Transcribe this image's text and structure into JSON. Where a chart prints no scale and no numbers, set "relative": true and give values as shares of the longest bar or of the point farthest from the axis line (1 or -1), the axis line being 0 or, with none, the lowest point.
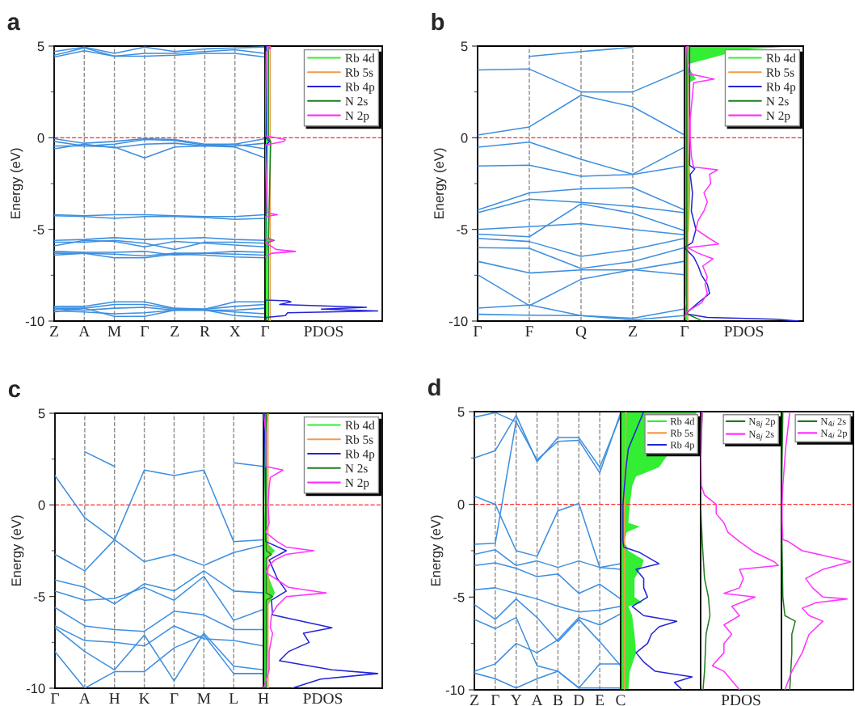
{
  "chart_data": [
    {
      "type": "line",
      "title": "a",
      "ylabel": "Energy (eV)",
      "categories": [
        "Z",
        "A",
        "M",
        "Γ",
        "Z",
        "R",
        "X",
        "Γ"
      ],
      "ylim": [
        -10,
        5
      ],
      "grid": "x",
      "yticks": [
        -10,
        {
          "value": -7.5,
          "label": null
        },
        -5,
        {
          "value": -2.5,
          "label": null
        },
        0,
        {
          "value": 2.5,
          "label": null
        },
        5
      ],
      "ref_lines": [
        {
          "axis": "y",
          "value": 0,
          "color": "#ff2a2a",
          "line_style": "dashed"
        }
      ],
      "series": [
        {
          "color": "#3d8fe0",
          "values": [
            4.7,
            4.95,
            4.6,
            4.95,
            4.7,
            4.85,
            4.9,
            4.95
          ]
        },
        {
          "color": "#3d8fe0",
          "values": [
            4.5,
            4.9,
            4.45,
            4.6,
            4.6,
            4.7,
            4.8,
            4.6
          ]
        },
        {
          "color": "#3d8fe0",
          "values": [
            4.4,
            4.75,
            4.45,
            4.45,
            4.5,
            4.6,
            4.6,
            4.4
          ]
        },
        {
          "color": "#3d8fe0",
          "values": [
            -0.05,
            -0.3,
            -0.2,
            -0.05,
            -0.1,
            -0.35,
            -0.35,
            -0.05
          ]
        },
        {
          "color": "#3d8fe0",
          "values": [
            -0.2,
            -0.45,
            -0.35,
            -0.1,
            -0.15,
            -0.4,
            -0.45,
            -0.3
          ]
        },
        {
          "color": "#3d8fe0",
          "values": [
            -0.45,
            -0.45,
            -0.5,
            -1.1,
            -0.5,
            -0.45,
            -0.5,
            -1.1
          ]
        },
        {
          "color": "#3d8fe0",
          "values": [
            -0.6,
            -0.35,
            -0.55,
            -0.35,
            -0.3,
            -0.45,
            -0.35,
            -0.6
          ]
        },
        {
          "color": "#3d8fe0",
          "values": [
            -4.2,
            -4.25,
            -4.2,
            -4.2,
            -4.25,
            -4.3,
            -4.3,
            -4.2
          ]
        },
        {
          "color": "#3d8fe0",
          "values": [
            -4.25,
            -4.3,
            -4.4,
            -4.3,
            -4.3,
            -4.35,
            -4.45,
            -4.4
          ]
        },
        {
          "color": "#3d8fe0",
          "values": [
            -5.6,
            -5.55,
            -5.45,
            -5.55,
            -5.5,
            -5.45,
            -5.55,
            -5.6
          ]
        },
        {
          "color": "#3d8fe0",
          "values": [
            -5.7,
            -5.7,
            -5.6,
            -5.75,
            -6.1,
            -5.7,
            -5.7,
            -5.75
          ]
        },
        {
          "color": "#3d8fe0",
          "values": [
            -5.9,
            -5.6,
            -5.65,
            -5.95,
            -5.65,
            -5.75,
            -5.85,
            -5.95
          ]
        },
        {
          "color": "#3d8fe0",
          "values": [
            -6.2,
            -6.25,
            -6.25,
            -6.2,
            -6.4,
            -6.3,
            -6.2,
            -6.25
          ]
        },
        {
          "color": "#3d8fe0",
          "values": [
            -6.3,
            -6.3,
            -6.35,
            -6.45,
            -6.3,
            -6.3,
            -6.35,
            -6.4
          ]
        },
        {
          "color": "#3d8fe0",
          "values": [
            -6.4,
            -6.3,
            -6.55,
            -6.55,
            -6.35,
            -6.4,
            -6.5,
            -6.55
          ]
        },
        {
          "color": "#3d8fe0",
          "values": [
            -9.2,
            -9.2,
            -8.95,
            -8.95,
            -9.3,
            -9.35,
            -8.95,
            -8.95
          ]
        },
        {
          "color": "#3d8fe0",
          "values": [
            -9.3,
            -9.3,
            -9.1,
            -9.1,
            -9.35,
            -9.35,
            -9.2,
            -9.1
          ]
        },
        {
          "color": "#3d8fe0",
          "values": [
            -9.35,
            -9.4,
            -9.3,
            -9.25,
            -9.4,
            -9.4,
            -9.4,
            -9.3
          ]
        },
        {
          "color": "#3d8fe0",
          "values": [
            -9.45,
            -9.5,
            -9.6,
            -9.55,
            -9.4,
            -9.4,
            -9.5,
            -9.6
          ]
        },
        {
          "color": "#3d8fe0",
          "values": [
            -9.5,
            -9.3,
            -9.75,
            -9.75,
            -9.4,
            -9.4,
            -9.7,
            -9.8
          ]
        }
      ]
    },
    {
      "type": "line",
      "orientation": "horizontal",
      "relative": true,
      "xlabel": "PDOS",
      "ylim": [
        -10,
        5
      ],
      "tick_labels": false,
      "legend": "top right",
      "ref_lines": [
        {
          "axis": "y",
          "value": 0,
          "color": "#ff2a2a",
          "line_style": "dashed"
        }
      ],
      "series": [
        {
          "name": "Rb 4d",
          "type": "area",
          "color": "#33ee33",
          "x": [
            5,
            4.8,
            0,
            -0.2,
            -5.5,
            -5.6,
            -6.2,
            -10
          ],
          "values": [
            0.02,
            0.02,
            0.02,
            0.03,
            0.02,
            0.04,
            0.02,
            0.02
          ]
        },
        {
          "name": "Rb 5s",
          "color": "#f39a4a",
          "x": [
            5,
            -10
          ],
          "values": [
            0.045,
            0.045
          ]
        },
        {
          "name": "Rb 4p",
          "color": "#2424d8",
          "x": [
            5,
            0,
            -0.2,
            -0.4,
            -8.85,
            -8.9,
            -8.95,
            -9.1,
            -9.25,
            -9.35,
            -9.45,
            -9.55,
            -9.7,
            -9.8,
            -10
          ],
          "values": [
            0.01,
            0.01,
            0.04,
            0.01,
            0.0,
            0.2,
            0.23,
            0.13,
            0.9,
            0.5,
            1.0,
            0.2,
            0.18,
            0.01,
            0.0
          ]
        },
        {
          "name": "N 2s",
          "color": "#1e7d1e",
          "x": [
            5,
            0,
            -0.2,
            -5.5,
            -5.6,
            -5.7,
            -10
          ],
          "values": [
            0.03,
            0.03,
            0.05,
            0.03,
            0.08,
            0.03,
            0.03
          ]
        },
        {
          "name": "N 2p",
          "color": "#ff33ff",
          "x": [
            5,
            4.9,
            4.7,
            0.1,
            -0.1,
            -0.2,
            -0.3,
            -0.4,
            -4.1,
            -4.2,
            -4.3,
            -5.5,
            -5.6,
            -5.7,
            -6.1,
            -6.2,
            -6.3,
            -6.5
          ],
          "values": [
            0.02,
            0.05,
            0.01,
            0.0,
            0.18,
            0.17,
            0.08,
            0.0,
            0.02,
            0.11,
            0.0,
            0.0,
            0.07,
            0.0,
            0.1,
            0.27,
            0.06,
            0.0
          ]
        }
      ]
    },
    {
      "type": "line",
      "title": "b",
      "ylabel": "Energy (eV)",
      "categories": [
        "Γ",
        "F",
        "Q",
        "Z",
        "Γ"
      ],
      "ylim": [
        -10,
        5
      ],
      "grid": "x",
      "yticks": [
        -10,
        {
          "value": -7.5,
          "label": null
        },
        -5,
        {
          "value": -2.5,
          "label": null
        },
        0,
        {
          "value": 2.5,
          "label": null
        },
        5
      ],
      "ref_lines": [
        {
          "axis": "y",
          "value": 0,
          "color": "#ff2a2a",
          "line_style": "dashed"
        }
      ],
      "series": [
        {
          "color": "#3d8fe0",
          "values": [
            null,
            4.44,
            4.7,
            4.93,
            null
          ]
        },
        {
          "color": "#3d8fe0",
          "values": [
            3.7,
            3.75,
            2.5,
            2.5,
            3.7
          ]
        },
        {
          "color": "#3d8fe0",
          "values": [
            0.15,
            0.59,
            2.32,
            1.69,
            0.15
          ]
        },
        {
          "color": "#3d8fe0",
          "values": [
            -0.51,
            -0.24,
            -1.18,
            -1.99,
            -0.51
          ]
        },
        {
          "color": "#3d8fe0",
          "values": [
            -1.54,
            -1.5,
            -2.1,
            -2.0,
            -1.54
          ]
        },
        {
          "color": "#3d8fe0",
          "values": [
            -3.94,
            -3.01,
            -2.79,
            -2.72,
            -3.94
          ]
        },
        {
          "color": "#3d8fe0",
          "values": [
            -4.09,
            -3.35,
            -3.53,
            -3.75,
            -4.09
          ]
        },
        {
          "color": "#3d8fe0",
          "values": [
            -5.0,
            -4.85,
            -4.68,
            -5.0,
            -5.29
          ]
        },
        {
          "color": "#3d8fe0",
          "values": [
            -5.26,
            -5.4,
            -3.6,
            -4.12,
            -5.07
          ]
        },
        {
          "color": "#3d8fe0",
          "values": [
            -5.49,
            -5.66,
            -6.47,
            -6.1,
            -5.49
          ]
        },
        {
          "color": "#3d8fe0",
          "values": [
            -6.0,
            -6.03,
            -7.13,
            -6.76,
            -6.0
          ]
        },
        {
          "color": "#3d8fe0",
          "values": [
            -6.74,
            -7.38,
            -7.21,
            -7.21,
            -6.74
          ]
        },
        {
          "color": "#3d8fe0",
          "values": [
            -7.47,
            -9.16,
            -7.72,
            -7.2,
            -7.47
          ]
        },
        {
          "color": "#3d8fe0",
          "values": [
            -9.29,
            -9.12,
            -9.7,
            -9.85,
            -9.34
          ]
        },
        {
          "color": "#3d8fe0",
          "values": [
            -9.63,
            -9.68,
            -9.7,
            -9.93,
            -9.7
          ]
        }
      ]
    },
    {
      "type": "line",
      "orientation": "horizontal",
      "relative": true,
      "xlabel": "PDOS",
      "ylim": [
        -10,
        5
      ],
      "tick_labels": false,
      "legend": "top right",
      "ref_lines": [
        {
          "axis": "y",
          "value": 0,
          "color": "#ff2a2a",
          "line_style": "dashed"
        }
      ],
      "series": [
        {
          "name": "Rb 4d",
          "type": "area",
          "color": "#33ee33",
          "x": [
            5,
            4.8,
            4.5,
            4.0,
            3.2,
            3.0,
            0,
            -2,
            -3,
            -5,
            -6,
            -8,
            -9,
            -10
          ],
          "values": [
            0.97,
            0.5,
            null,
            0.02,
            0.1,
            0.04,
            0.03,
            0.05,
            0.05,
            0.04,
            0.02,
            0.02,
            0.01,
            0.03
          ]
        },
        {
          "name": "Rb 5s",
          "color": "#f39a4a",
          "x": [
            5,
            4.5,
            4.0,
            0,
            -10
          ],
          "values": [
            0.03,
            0.05,
            0.03,
            0.03,
            0.03
          ]
        },
        {
          "name": "Rb 4p",
          "color": "#2424d8",
          "x": [
            5,
            0,
            -1.5,
            -1.7,
            -2,
            -3,
            -4,
            -5,
            -5.7,
            -6,
            -6.5,
            -7,
            -7.5,
            -8,
            -8.5,
            -9,
            -9.6,
            -9.8,
            -9.9,
            -10
          ],
          "values": [
            0.045,
            0.045,
            0.045,
            0.09,
            0.05,
            0.07,
            0.06,
            0.1,
            0.07,
            0.0,
            0.08,
            0.12,
            0.15,
            0.2,
            0.22,
            0.12,
            0.01,
            0.2,
            0.8,
            1.0
          ]
        },
        {
          "name": "N 2s",
          "color": "#1e7d1e",
          "x": [
            4.9,
            -9.6,
            -9.95
          ],
          "values": [
            0.02,
            0.02,
            0.14
          ]
        },
        {
          "name": "N 2p",
          "color": "#ff33ff",
          "x": [
            5,
            3.5,
            3.2,
            3.0,
            1,
            0,
            -1,
            -1.6,
            -1.75,
            -2,
            -2.5,
            -3,
            -3.5,
            -4,
            -4.5,
            -5,
            -5.5,
            -5.8,
            -6,
            -6.3,
            -6.6,
            -7,
            -7.6,
            -8,
            -8.5,
            -9,
            -9.5,
            -9.8
          ],
          "values": [
            0.02,
            0.03,
            0.26,
            0.08,
            0.05,
            0.05,
            0.06,
            0.08,
            0.29,
            0.22,
            0.23,
            0.17,
            0.2,
            0.17,
            0.12,
            0.1,
            0.22,
            0.3,
            0.03,
            0.12,
            0.25,
            0.16,
            0.2,
            0.18,
            0.2,
            0.15,
            0.02,
            0.0
          ]
        }
      ]
    },
    {
      "type": "line",
      "title": "c",
      "ylabel": "Energy (eV)",
      "categories": [
        "Γ",
        "A",
        "H",
        "K",
        "Γ",
        "M",
        "L",
        "H"
      ],
      "ylim": [
        -10,
        5
      ],
      "grid": "x",
      "yticks": [
        -10,
        {
          "value": -7.5,
          "label": null
        },
        -5,
        {
          "value": -2.5,
          "label": null
        },
        0,
        {
          "value": 2.5,
          "label": null
        },
        5
      ],
      "ref_lines": [
        {
          "axis": "y",
          "value": 0,
          "color": "#ff2a2a",
          "line_style": "dashed"
        }
      ],
      "series": [
        {
          "color": "#3d8fe0",
          "values": [
            null,
            2.9,
            2.1,
            null,
            null,
            null,
            null,
            null
          ]
        },
        {
          "color": "#3d8fe0",
          "values": [
            null,
            null,
            null,
            null,
            null,
            null,
            2.3,
            2.1
          ]
        },
        {
          "color": "#3d8fe0",
          "values": [
            1.6,
            -0.7,
            -1.9,
            1.9,
            1.6,
            1.9,
            -2.0,
            -1.9
          ]
        },
        {
          "color": "#3d8fe0",
          "values": [
            -2.7,
            -3.6,
            -1.9,
            -3.1,
            -2.7,
            -3.3,
            -2.6,
            -2.2
          ]
        },
        {
          "color": "#3d8fe0",
          "values": [
            -4.1,
            -4.5,
            -5.4,
            -4.3,
            -4.7,
            -3.6,
            -4.7,
            -4.8
          ]
        },
        {
          "color": "#3d8fe0",
          "values": [
            -4.7,
            -5.2,
            -5.1,
            -4.5,
            -5.2,
            -3.9,
            -6.3,
            -5.7
          ]
        },
        {
          "color": "#3d8fe0",
          "values": [
            -5.6,
            -6.6,
            -6.8,
            -6.9,
            -5.8,
            -6.0,
            -6.8,
            -6.8
          ]
        },
        {
          "color": "#3d8fe0",
          "values": [
            -6.6,
            -7.4,
            -7.5,
            -7.7,
            -6.6,
            -7.3,
            -7.4,
            -7.7
          ]
        },
        {
          "color": "#3d8fe0",
          "values": [
            -6.7,
            -8.0,
            -9.0,
            -7.1,
            -9.6,
            -7.0,
            -8.8,
            -9.0
          ]
        },
        {
          "color": "#3d8fe0",
          "values": [
            -8.0,
            -10.0,
            -9.1,
            -9.1,
            -7.8,
            -7.1,
            -9.2,
            -9.2
          ]
        }
      ]
    },
    {
      "type": "line",
      "orientation": "horizontal",
      "relative": true,
      "xlabel": "PDOS",
      "ylim": [
        -10,
        5
      ],
      "tick_labels": false,
      "legend": "top right",
      "ref_lines": [
        {
          "axis": "y",
          "value": 0,
          "color": "#ff2a2a",
          "line_style": "dashed"
        }
      ],
      "series": [
        {
          "name": "Rb 4d",
          "type": "area",
          "color": "#33ee33",
          "x": [
            5,
            4.5,
            3,
            0,
            -2,
            -2.5,
            -3,
            -4,
            -4.8,
            -5.5,
            -7,
            -9,
            -10
          ],
          "values": [
            0.05,
            0.03,
            0.02,
            0.01,
            0.02,
            0.1,
            0.02,
            0.05,
            0.1,
            0.04,
            0.04,
            0.03,
            0.02
          ]
        },
        {
          "name": "Rb 5s",
          "color": "#f39a4a",
          "x": [
            5,
            -10
          ],
          "values": [
            0.04,
            0.04
          ]
        },
        {
          "name": "Rb 4p",
          "color": "#2424d8",
          "x": [
            5,
            0,
            -2,
            -2.5,
            -3,
            -4,
            -4.7,
            -5.2,
            -6,
            -6.7,
            -7,
            -7.5,
            -8,
            -8.5,
            -9,
            -9.2,
            -9.5,
            -9.8,
            -10
          ],
          "values": [
            0.01,
            0.02,
            0.02,
            0.2,
            0.05,
            0.12,
            0.2,
            0.07,
            0.08,
            0.6,
            0.35,
            0.4,
            0.22,
            0.14,
            0.6,
            1.0,
            0.5,
            0.35,
            0.25
          ]
        },
        {
          "name": "N 2s",
          "color": "#1e7d1e",
          "x": [
            5,
            -2.5,
            -2.7,
            -2.9,
            -4.8,
            -5,
            -5.2,
            -10
          ],
          "values": [
            0.025,
            0.025,
            0.07,
            0.025,
            0.025,
            0.08,
            0.025,
            0.025
          ]
        },
        {
          "name": "N 2p",
          "color": "#ff33ff",
          "x": [
            5,
            4,
            2.1,
            1.9,
            1.5,
            1,
            0,
            -1,
            -1.5,
            -2,
            -2.3,
            -2.5,
            -2.7,
            -3,
            -3.3,
            -3.7,
            -4,
            -4.5,
            -4.8,
            -5,
            -5.5,
            -6,
            -6.7,
            -7,
            -8,
            -9,
            -10
          ],
          "values": [
            0.0,
            0.02,
            0.02,
            0.17,
            0.06,
            0.05,
            0.04,
            0.05,
            0.02,
            0.12,
            0.2,
            0.44,
            0.2,
            0.1,
            0.05,
            0.02,
            0.1,
            0.22,
            0.55,
            0.2,
            0.12,
            0.07,
            0.06,
            0.08,
            0.05,
            0.05,
            0.0
          ]
        }
      ]
    },
    {
      "type": "line",
      "title": "d",
      "ylabel": "Energy (eV)",
      "categories": [
        "Z",
        "Γ",
        "Y",
        "A",
        "B",
        "D",
        "E",
        "C"
      ],
      "ylim": [
        -10,
        5
      ],
      "grid": "x",
      "yticks": [
        -10,
        {
          "value": -7.5,
          "label": null
        },
        -5,
        {
          "value": -2.5,
          "label": null
        },
        0,
        {
          "value": 2.5,
          "label": null
        },
        5
      ],
      "ref_lines": [
        {
          "axis": "y",
          "value": 0,
          "color": "#ff2a2a",
          "line_style": "dashed"
        }
      ],
      "series": [
        {
          "color": "#3d8fe0",
          "values": [
            2.5,
            2.9,
            4.8,
            2.3,
            3.6,
            3.6,
            2.0,
            4.8
          ]
        },
        {
          "color": "#3d8fe0",
          "values": [
            4.7,
            4.95,
            4.45,
            2.4,
            3.4,
            3.45,
            1.7,
            4.95
          ]
        },
        {
          "color": "#3d8fe0",
          "values": [
            0.45,
            0.0,
            -2.5,
            -2.8,
            -0.35,
            0.05,
            -3.4,
            -3.2
          ]
        },
        {
          "color": "#3d8fe0",
          "values": [
            -2.15,
            -2.1,
            4.5,
            null,
            null,
            null,
            null,
            null
          ]
        },
        {
          "color": "#3d8fe0",
          "values": [
            -2.7,
            -2.45,
            -3.3,
            -3.05,
            -3.4,
            -3.05,
            -3.4,
            -3.5
          ]
        },
        {
          "color": "#3d8fe0",
          "values": [
            -3.3,
            -3.15,
            -3.45,
            -3.9,
            -3.75,
            -4.8,
            -4.3,
            -5.1
          ]
        },
        {
          "color": "#3d8fe0",
          "values": [
            -4.6,
            -4.5,
            -4.8,
            -5.1,
            -5.5,
            -5.8,
            -5.7,
            -5.5
          ]
        },
        {
          "color": "#3d8fe0",
          "values": [
            -5.4,
            -6.2,
            -5.1,
            -6.1,
            -7.4,
            -6.2,
            -7.4,
            -8.7
          ]
        },
        {
          "color": "#3d8fe0",
          "values": [
            -6.2,
            -6.7,
            -6.1,
            -8.7,
            -9.0,
            -9.9,
            -8.6,
            -8.6
          ]
        },
        {
          "color": "#3d8fe0",
          "values": [
            -9.0,
            -8.6,
            -7.5,
            -8.0,
            -7.3,
            -6.1,
            -6.5,
            -5.9
          ]
        },
        {
          "color": "#3d8fe0",
          "values": [
            -9.1,
            -9.4,
            -9.9,
            -9.4,
            -9.0,
            -9.9,
            -9.9,
            -9.9
          ]
        }
      ]
    },
    {
      "type": "line",
      "orientation": "horizontal",
      "relative": true,
      "ylim": [
        -10,
        5
      ],
      "tick_labels": false,
      "legend": "top right",
      "ref_lines": [
        {
          "axis": "y",
          "value": 0,
          "color": "#ff2a2a",
          "line_style": "dashed"
        }
      ],
      "series": [
        {
          "name": "Rb 4d",
          "type": "area",
          "color": "#33ee33",
          "x": [
            5,
            4.5,
            3.5,
            2.5,
            2,
            1.5,
            1,
            0,
            -1,
            -1.2,
            -1.5,
            -2,
            -2.5,
            -3,
            -3.3,
            -4,
            -5,
            -5.3,
            -5.5,
            -6,
            -7,
            -8,
            -9,
            -10
          ],
          "values": [
            1.0,
            null,
            null,
            null,
            0.5,
            0.2,
            0.15,
            0.12,
            0.1,
            0.25,
            0.08,
            0.05,
            0.1,
            0.3,
            0.28,
            0.18,
            0.18,
            0.28,
            0.1,
            0.15,
            0.18,
            0.2,
            0.12,
            0.1
          ]
        },
        {
          "name": "Rb 5s",
          "color": "#f39a4a",
          "x": [
            5,
            0,
            -10
          ],
          "values": [
            0.07,
            0.05,
            0.05
          ]
        },
        {
          "name": "Rb 4p",
          "color": "#2424d8",
          "x": [
            5,
            3,
            2,
            0,
            -2,
            -2.3,
            -2.6,
            -3.2,
            -3.5,
            -4,
            -4.5,
            -5,
            -5.5,
            -6,
            -6.3,
            -6.6,
            -7,
            -7.5,
            -8,
            -8.5,
            -9,
            -9.3,
            -9.6,
            -10
          ],
          "values": [
            0.3,
            0.1,
            0.07,
            0.03,
            0.03,
            0.04,
            0.25,
            0.5,
            0.2,
            0.3,
            0.3,
            0.35,
            0.15,
            0.3,
            0.73,
            0.5,
            0.4,
            0.35,
            0.2,
            0.3,
            0.45,
            0.93,
            0.7,
            0.8
          ]
        }
      ]
    },
    {
      "type": "line",
      "orientation": "horizontal",
      "relative": true,
      "xlabel": "PDOS",
      "ylim": [
        -10,
        5
      ],
      "tick_labels": false,
      "legend": "top right",
      "ref_lines": [
        {
          "axis": "y",
          "value": 0,
          "color": "#ff2a2a",
          "line_style": "dashed"
        }
      ],
      "series": [
        {
          "name": "N$_{8j}$ 2p",
          "color": "#1e7d1e",
          "x": [
            5,
            2,
            0,
            -2,
            -4,
            -5,
            -6,
            -7,
            -8,
            -9,
            -10
          ],
          "values": [
            0.02,
            0.0,
            0.0,
            0.02,
            0.05,
            0.1,
            0.12,
            0.07,
            0.06,
            0.05,
            0.03
          ]
        },
        {
          "name": "N$_{8j}$ 2s",
          "color": "#ff33ff",
          "x": [
            5,
            3,
            1,
            0.5,
            0,
            -0.5,
            -1,
            -1.5,
            -2,
            -2.6,
            -3.1,
            -3.3,
            -3.5,
            -4,
            -4.5,
            -4.8,
            -5,
            -5.5,
            -6,
            -6.5,
            -7,
            -7.5,
            -8,
            -8.7,
            -9,
            -9.5,
            -10
          ],
          "values": [
            0.02,
            0.0,
            0.01,
            0.05,
            0.2,
            0.2,
            0.3,
            0.35,
            0.5,
            0.7,
            0.95,
            1.0,
            0.5,
            0.55,
            0.5,
            0.3,
            0.7,
            0.4,
            0.5,
            0.3,
            0.4,
            0.3,
            0.3,
            0.15,
            0.3,
            0.4,
            0.5
          ]
        }
      ]
    },
    {
      "type": "line",
      "orientation": "horizontal",
      "relative": true,
      "ylim": [
        -10,
        5
      ],
      "tick_labels": false,
      "legend": "top right",
      "ref_lines": [
        {
          "axis": "y",
          "value": 0,
          "color": "#ff2a2a",
          "line_style": "dashed"
        }
      ],
      "series": [
        {
          "name": "N$_{4i}$ 2s",
          "color": "#1e7d1e",
          "x": [
            5,
            0,
            -5,
            -6,
            -6.3,
            -7,
            -8,
            -10
          ],
          "values": [
            0.02,
            0.0,
            0.02,
            0.05,
            0.2,
            0.15,
            0.15,
            0.12
          ]
        },
        {
          "name": "N$_{4i}$ 2p",
          "color": "#ff33ff",
          "x": [
            5,
            3,
            1,
            0,
            -1,
            -1.9,
            -2,
            -2.5,
            -3,
            -3.1,
            -3.5,
            -4,
            -4.5,
            -5,
            -5.1,
            -5.3,
            -5.6,
            -6,
            -6.3,
            -7,
            -8,
            -9,
            -9.5,
            -10
          ],
          "values": [
            0.12,
            0.06,
            0.02,
            0.01,
            0.01,
            0.02,
            0.1,
            0.3,
            0.9,
            1.0,
            0.6,
            0.35,
            0.45,
            0.6,
            0.95,
            0.5,
            0.3,
            0.4,
            0.6,
            0.4,
            0.3,
            0.15,
            0.1,
            0.05
          ]
        }
      ]
    }
  ]
}
